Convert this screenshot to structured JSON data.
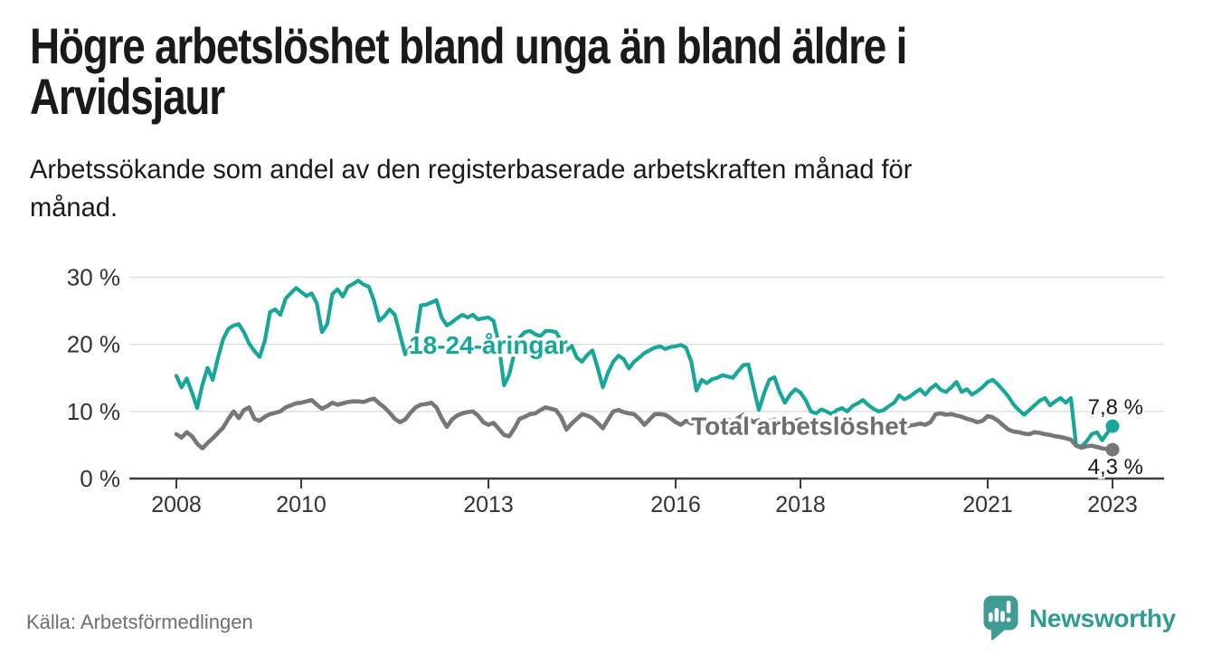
{
  "header": {
    "title": "Högre arbetslöshet bland unga än bland äldre i\nArvidsjaur",
    "subtitle": "Arbetssökande som andel av den registerbaserade arbetskraften månad för\nmånad."
  },
  "footer": {
    "source": "Källa: Arbetsförmedlingen",
    "brand": "Newsworthy"
  },
  "colors": {
    "youth": "#17A69A",
    "total": "#777777",
    "total_label": "#6E6E6E",
    "axis": "#3D3D3D",
    "grid": "#DEDEDE",
    "text": "#1A1A1A",
    "muted": "#6F6F6F",
    "brand": "#2E9C94",
    "brand_icon": "#3F9B94",
    "halo": "#FFFFFF"
  },
  "chart_data": {
    "type": "line",
    "title": "Högre arbetslöshet bland unga än bland äldre i Arvidsjaur",
    "subtitle": "Arbetssökande som andel av den registerbaserade arbetskraften månad för månad.",
    "source": "Källa: Arbetsförmedlingen",
    "unit": "%",
    "x_start_year": 2008,
    "x_months_per_point": 1,
    "x_end_year": 2023,
    "xlim": [
      2007.25,
      2023.85
    ],
    "ylim": [
      0,
      33
    ],
    "grid": true,
    "legend": "inline-labels",
    "x_ticks": [
      {
        "v": 2008,
        "label": "2008"
      },
      {
        "v": 2010,
        "label": "2010"
      },
      {
        "v": 2013,
        "label": "2013"
      },
      {
        "v": 2016,
        "label": "2016"
      },
      {
        "v": 2018,
        "label": "2018"
      },
      {
        "v": 2021,
        "label": "2021"
      },
      {
        "v": 2023,
        "label": "2023"
      }
    ],
    "y_ticks": [
      {
        "v": 0,
        "label": "0 %"
      },
      {
        "v": 10,
        "label": "10 %"
      },
      {
        "v": 20,
        "label": "20 %"
      },
      {
        "v": 30,
        "label": "30 %"
      }
    ],
    "series": [
      {
        "name": "18-24-åringar",
        "color": "#17A69A",
        "label_color": "#17A69A",
        "end_label": "7,8 %",
        "end_value": 7.8,
        "label_anchor": {
          "year": 2013.0,
          "pct": 19.9
        },
        "values": [
          15.3,
          13.6,
          14.9,
          12.8,
          10.5,
          14.0,
          16.5,
          14.7,
          18.0,
          20.8,
          22.3,
          22.8,
          23.0,
          21.8,
          20.1,
          19.0,
          18.1,
          20.5,
          24.8,
          25.2,
          24.4,
          26.8,
          27.6,
          28.4,
          27.8,
          27.2,
          27.6,
          26.1,
          21.8,
          23.0,
          27.5,
          28.2,
          27.1,
          28.6,
          29.0,
          29.5,
          28.9,
          28.6,
          26.5,
          23.5,
          24.2,
          25.2,
          24.4,
          21.5,
          18.5,
          19.5,
          20.5,
          25.8,
          25.9,
          26.2,
          26.6,
          24.0,
          22.8,
          23.3,
          23.9,
          24.4,
          24.0,
          24.4,
          23.7,
          23.9,
          24.0,
          23.5,
          20.0,
          13.9,
          15.5,
          18.7,
          21.0,
          21.8,
          22.0,
          21.5,
          21.2,
          22.0,
          22.0,
          21.8,
          20.5,
          19.1,
          19.8,
          18.0,
          17.4,
          18.4,
          19.1,
          16.5,
          13.6,
          15.8,
          17.4,
          18.3,
          17.8,
          16.4,
          17.4,
          18.0,
          18.7,
          19.1,
          19.5,
          19.7,
          19.3,
          19.6,
          19.7,
          19.9,
          19.5,
          17.4,
          13.1,
          14.7,
          14.2,
          14.8,
          15.0,
          15.4,
          15.2,
          15.0,
          16.0,
          16.9,
          17.0,
          13.5,
          10.2,
          12.7,
          14.7,
          15.1,
          12.9,
          11.3,
          12.5,
          13.3,
          12.8,
          11.7,
          10.0,
          9.7,
          10.3,
          10.0,
          9.6,
          10.2,
          10.5,
          10.0,
          10.8,
          11.2,
          11.7,
          11.0,
          10.4,
          10.0,
          10.2,
          10.8,
          11.3,
          12.4,
          11.8,
          12.2,
          12.8,
          13.3,
          12.5,
          13.4,
          14.0,
          13.2,
          12.9,
          13.6,
          14.4,
          12.9,
          13.3,
          12.5,
          13.0,
          13.6,
          14.4,
          14.7,
          14.0,
          13.1,
          12.2,
          11.0,
          10.2,
          9.5,
          10.2,
          10.9,
          11.6,
          12.0,
          10.9,
          11.5,
          12.0,
          11.3,
          12.0,
          4.9,
          4.8,
          5.5,
          6.6,
          6.9,
          5.7,
          6.8,
          7.8
        ]
      },
      {
        "name": "Total arbetslöshet",
        "color": "#777777",
        "label_color": "#6E6E6E",
        "end_label": "4,3 %",
        "end_value": 4.3,
        "label_anchor": {
          "year": 2017.98,
          "pct": 7.85
        },
        "values": [
          6.6,
          6.1,
          6.9,
          6.3,
          5.2,
          4.5,
          5.3,
          6.0,
          6.8,
          7.6,
          8.9,
          10.0,
          9.0,
          10.2,
          10.6,
          8.9,
          8.6,
          9.2,
          9.6,
          9.8,
          10.0,
          10.6,
          10.9,
          11.2,
          11.3,
          11.5,
          11.7,
          11.0,
          10.4,
          10.8,
          11.3,
          11.0,
          11.2,
          11.4,
          11.5,
          11.5,
          11.4,
          11.7,
          11.9,
          11.2,
          10.6,
          9.8,
          8.9,
          8.4,
          8.8,
          9.8,
          10.6,
          11.0,
          11.1,
          11.3,
          10.6,
          9.0,
          7.7,
          8.8,
          9.4,
          9.7,
          9.9,
          10.0,
          9.4,
          8.4,
          8.0,
          8.3,
          7.4,
          6.5,
          6.3,
          7.5,
          8.9,
          9.2,
          9.6,
          9.7,
          10.2,
          10.6,
          10.4,
          10.2,
          9.1,
          7.3,
          8.2,
          8.9,
          9.6,
          9.4,
          9.0,
          8.3,
          7.5,
          8.8,
          10.0,
          10.2,
          9.9,
          9.7,
          9.6,
          8.9,
          8.0,
          8.8,
          9.6,
          9.6,
          9.5,
          9.0,
          8.4,
          8.0,
          8.6,
          8.2,
          8.4,
          7.9,
          8.3,
          8.6,
          8.2,
          8.5,
          8.8,
          8.4,
          9.0,
          9.5,
          8.9,
          8.4,
          8.7,
          8.2,
          8.5,
          8.8,
          8.3,
          8.0,
          8.4,
          8.6,
          8.8,
          8.5,
          8.2,
          7.8,
          7.5,
          7.9,
          8.2,
          7.9,
          7.6,
          7.9,
          8.1,
          8.3,
          8.0,
          7.7,
          7.4,
          7.6,
          7.3,
          7.5,
          7.8,
          8.0,
          7.7,
          7.9,
          8.0,
          8.2,
          8.0,
          8.4,
          9.6,
          9.7,
          9.5,
          9.6,
          9.4,
          9.2,
          8.9,
          8.7,
          8.4,
          8.6,
          9.3,
          9.1,
          8.6,
          7.9,
          7.3,
          7.0,
          6.9,
          6.7,
          6.6,
          6.9,
          6.8,
          6.6,
          6.5,
          6.3,
          6.2,
          6.0,
          5.8,
          4.9,
          4.6,
          4.8,
          4.9,
          4.7,
          4.5,
          4.4,
          4.3
        ]
      }
    ]
  }
}
